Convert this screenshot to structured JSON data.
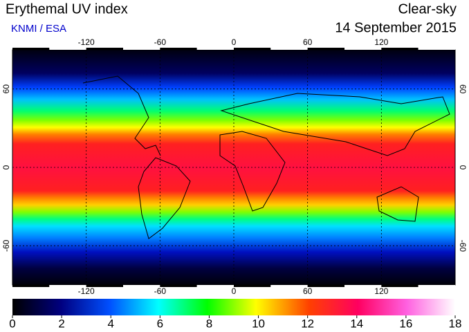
{
  "header": {
    "title": "Erythemal UV index",
    "source": "KNMI / ESA",
    "mode": "Clear-sky",
    "date": "14 September 2015"
  },
  "map": {
    "xlim": [
      -180,
      180
    ],
    "ylim": [
      -90,
      90
    ],
    "xticks": [
      -120,
      -60,
      0,
      60,
      120
    ],
    "yticks": [
      -60,
      0,
      60
    ],
    "grid": true
  },
  "colorbar": {
    "range": [
      0,
      18
    ],
    "ticks": [
      0,
      2,
      4,
      6,
      8,
      10,
      12,
      14,
      16,
      18
    ]
  }
}
